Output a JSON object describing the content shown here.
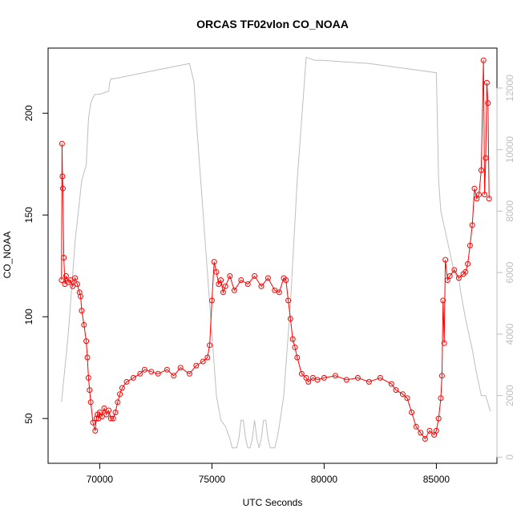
{
  "chart_data": {
    "type": "scatter",
    "title": "ORCAS TF02vlon CO_NOAA",
    "xlabel": "UTC Seconds",
    "ylabel": "CO_NOAA",
    "xlim": [
      67700,
      87700
    ],
    "ylim": [
      28,
      232
    ],
    "x_ticks": [
      70000,
      75000,
      80000,
      85000
    ],
    "y_ticks": [
      50,
      100,
      150,
      200
    ],
    "y2lim": [
      -200,
      13300
    ],
    "y2_ticks": [
      0,
      2000,
      4000,
      6000,
      8000,
      10000,
      12000
    ],
    "grid": false,
    "colors": {
      "series": "#ff0000",
      "secondary": "#bebebe"
    },
    "series": [
      {
        "axis": "left",
        "style": "points+lines",
        "color": "#ff0000",
        "x": [
          68300,
          68320,
          68340,
          68360,
          68400,
          68450,
          68500,
          68600,
          68700,
          68800,
          68900,
          69000,
          69100,
          69150,
          69200,
          69300,
          69400,
          69450,
          69500,
          69550,
          69600,
          69700,
          69800,
          69850,
          69900,
          69950,
          70000,
          70100,
          70200,
          70300,
          70400,
          70500,
          70600,
          70700,
          70800,
          70900,
          71000,
          71200,
          71500,
          71800,
          72000,
          72300,
          72600,
          73000,
          73300,
          73600,
          74000,
          74300,
          74600,
          74800,
          74900,
          75000,
          75100,
          75200,
          75300,
          75400,
          75500,
          75600,
          75800,
          76000,
          76300,
          76600,
          76900,
          77200,
          77500,
          77800,
          78000,
          78200,
          78300,
          78400,
          78500,
          78600,
          78700,
          78800,
          79000,
          79200,
          79300,
          79500,
          79700,
          80000,
          80500,
          81000,
          81500,
          82000,
          82500,
          83000,
          83200,
          83500,
          83700,
          83900,
          84100,
          84300,
          84500,
          84700,
          84900,
          85000,
          85100,
          85200,
          85250,
          85300,
          85350,
          85400,
          85500,
          85600,
          85800,
          86000,
          86200,
          86300,
          86400,
          86500,
          86600,
          86700,
          86800,
          86900,
          87000,
          87100,
          87150,
          87200,
          87250,
          87300,
          87350
        ],
        "y": [
          118,
          185,
          169,
          163,
          129,
          116,
          120,
          117,
          118,
          115,
          119,
          116,
          112,
          110,
          103,
          96,
          88,
          80,
          70,
          64,
          58,
          48,
          44,
          50,
          52,
          50,
          53,
          51,
          55,
          52,
          54,
          50,
          50,
          53,
          58,
          62,
          65,
          68,
          70,
          72,
          74,
          73,
          72,
          74,
          71,
          75,
          72,
          76,
          78,
          80,
          86,
          108,
          127,
          122,
          116,
          118,
          112,
          115,
          120,
          113,
          118,
          116,
          120,
          115,
          119,
          113,
          112,
          119,
          118,
          108,
          99,
          89,
          85,
          80,
          72,
          70,
          68,
          70,
          69,
          70,
          71,
          69,
          70,
          68,
          70,
          67,
          64,
          62,
          60,
          53,
          46,
          43,
          40,
          44,
          42,
          44,
          50,
          60,
          71,
          108,
          87,
          128,
          118,
          120,
          123,
          119,
          121,
          122,
          126,
          135,
          145,
          163,
          158,
          160,
          172,
          226,
          160,
          178,
          215,
          205,
          158
        ]
      },
      {
        "axis": "right",
        "style": "line",
        "color": "#bebebe",
        "x": [
          68300,
          68600,
          68900,
          69200,
          69400,
          69500,
          69600,
          69700,
          69800,
          70000,
          70400,
          70450,
          70500,
          70600,
          74000,
          74200,
          74300,
          74400,
          74600,
          74800,
          75000,
          75200,
          75400,
          75600,
          75800,
          75900,
          76000,
          76100,
          76200,
          76300,
          76400,
          76500,
          76600,
          76700,
          76800,
          76900,
          77000,
          77100,
          77200,
          77300,
          77400,
          77500,
          77600,
          77700,
          77800,
          77900,
          78000,
          78200,
          78500,
          78800,
          79200,
          79600,
          79900,
          82000,
          84000,
          85000,
          85100,
          85200,
          85500,
          85800,
          86000,
          86100,
          86300,
          86600,
          86800,
          87000,
          87200,
          87400
        ],
        "y": [
          1800,
          4000,
          7000,
          9000,
          9500,
          11000,
          11500,
          11700,
          11800,
          11800,
          11900,
          12200,
          12300,
          12300,
          12800,
          12200,
          11000,
          10000,
          8000,
          6000,
          4000,
          2000,
          1200,
          1000,
          600,
          300,
          300,
          300,
          600,
          1200,
          1200,
          600,
          300,
          300,
          600,
          1200,
          600,
          300,
          600,
          1200,
          1200,
          600,
          300,
          300,
          300,
          600,
          1000,
          2000,
          5000,
          9000,
          13000,
          12900,
          12900,
          12800,
          12600,
          12500,
          9000,
          8000,
          7000,
          6000,
          5800,
          5300,
          4500,
          3500,
          2700,
          2000,
          2000,
          1500
        ]
      }
    ]
  }
}
